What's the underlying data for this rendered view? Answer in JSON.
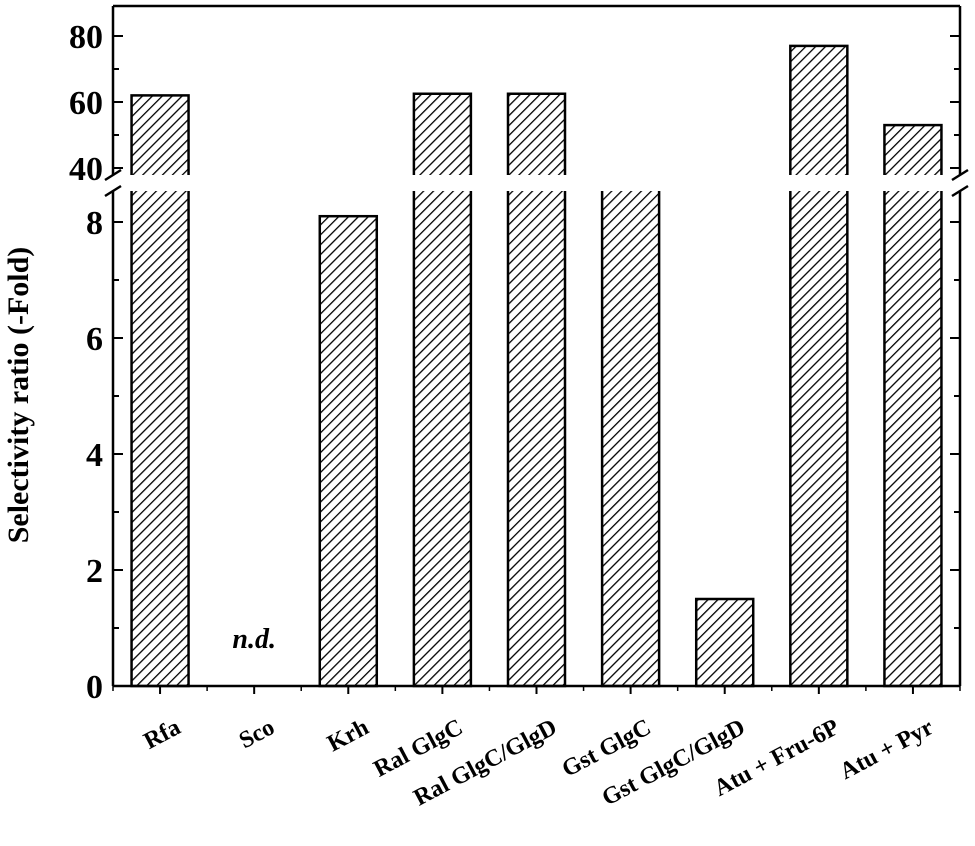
{
  "chart_data": {
    "type": "bar",
    "title": "",
    "xlabel": "",
    "ylabel": "Selectivity ratio (-Fold)",
    "categories": [
      "Rfa",
      "Sco",
      "Krh",
      "Ral GlgC",
      "Ral GlgC/GlgD",
      "Gst GlgC",
      "Gst GlgC/GlgD",
      "Atu + Fru-6P",
      "Atu + Pyr"
    ],
    "values": [
      62,
      null,
      8.1,
      62.5,
      62.5,
      36.5,
      1.5,
      77,
      53
    ],
    "annotations": [
      {
        "category": "Sco",
        "text": "n.d."
      }
    ],
    "broken_axis": {
      "lower_segment": {
        "ylim": [
          0,
          8.5
        ],
        "ticks": [
          0,
          2,
          4,
          6,
          8
        ]
      },
      "upper_segment": {
        "ylim": [
          35,
          90
        ],
        "ticks": [
          40,
          60,
          80
        ]
      }
    },
    "bar_fill": "diagonal hatch",
    "grid": false,
    "legend": "none"
  }
}
